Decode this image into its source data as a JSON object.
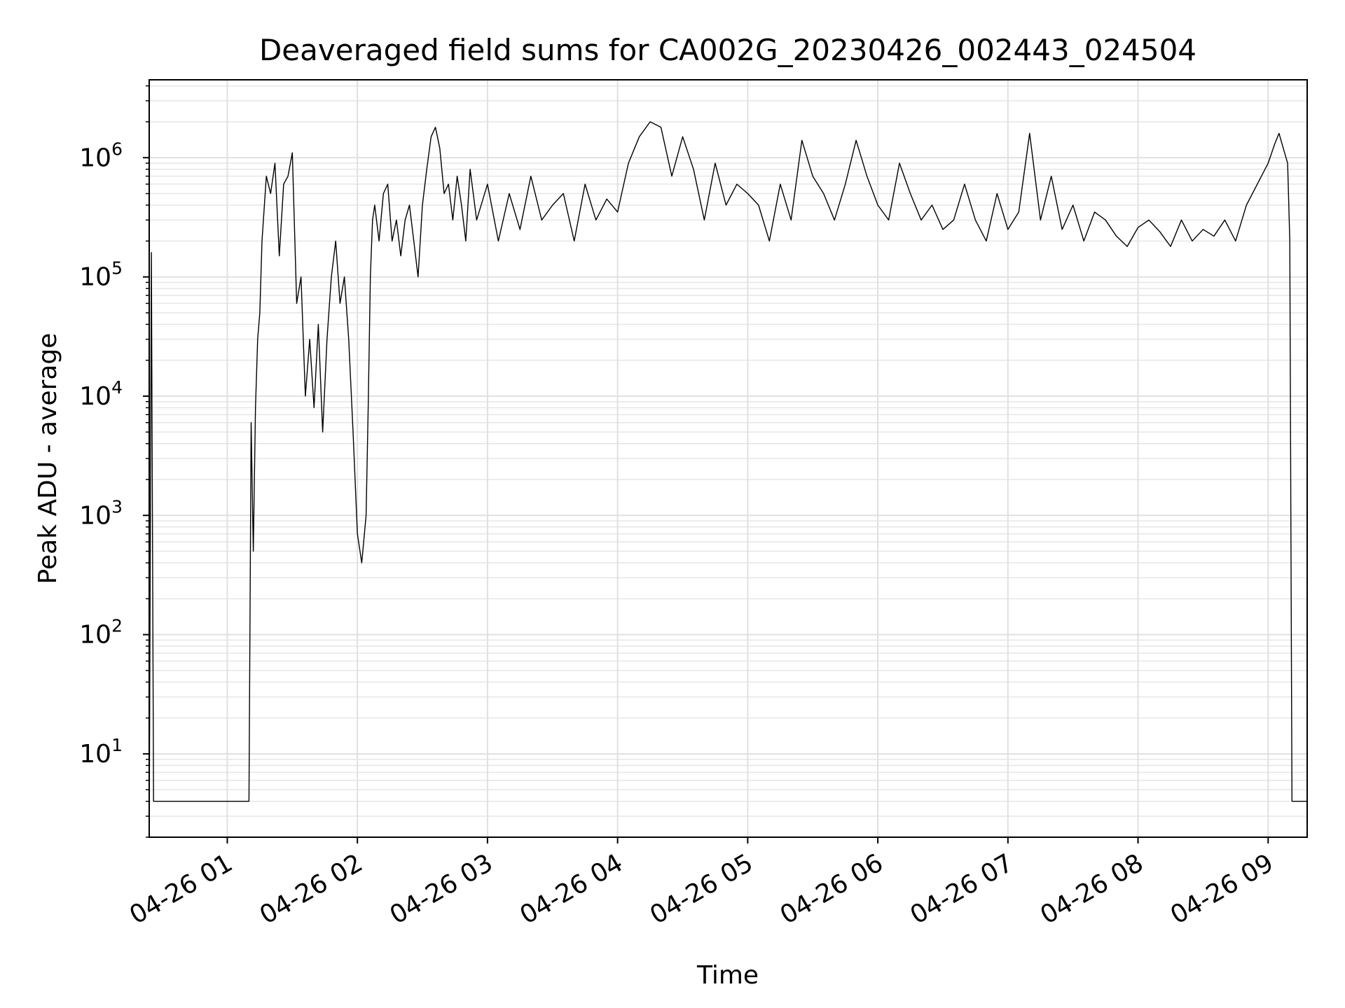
{
  "chart_data": {
    "type": "line",
    "title": "Deaveraged field sums for CA002G_20230426_002443_024504",
    "xlabel": "Time",
    "ylabel": "Peak ADU - average",
    "yscale": "log",
    "xlim": [
      "2023-04-26 00:24",
      "2023-04-26 09:18"
    ],
    "ylim": [
      2,
      4500000
    ],
    "grid": "major and minor",
    "legend": "none",
    "line_color": "#000000",
    "x_ticks": [
      {
        "value": "2023-04-26 01:00",
        "label": "04-26 01"
      },
      {
        "value": "2023-04-26 02:00",
        "label": "04-26 02"
      },
      {
        "value": "2023-04-26 03:00",
        "label": "04-26 03"
      },
      {
        "value": "2023-04-26 04:00",
        "label": "04-26 04"
      },
      {
        "value": "2023-04-26 05:00",
        "label": "04-26 05"
      },
      {
        "value": "2023-04-26 06:00",
        "label": "04-26 06"
      },
      {
        "value": "2023-04-26 07:00",
        "label": "04-26 07"
      },
      {
        "value": "2023-04-26 08:00",
        "label": "04-26 08"
      },
      {
        "value": "2023-04-26 09:00",
        "label": "04-26 09"
      }
    ],
    "y_ticks": [
      {
        "value": 10,
        "base": "10",
        "exp": "1"
      },
      {
        "value": 100,
        "base": "10",
        "exp": "2"
      },
      {
        "value": 1000,
        "base": "10",
        "exp": "3"
      },
      {
        "value": 10000,
        "base": "10",
        "exp": "4"
      },
      {
        "value": 100000,
        "base": "10",
        "exp": "5"
      },
      {
        "value": 1000000,
        "base": "10",
        "exp": "6"
      }
    ],
    "series": [
      {
        "x": [
          "2023-04-26 00:24",
          "2023-04-26 00:25",
          "2023-04-26 00:26",
          "2023-04-26 00:27",
          "2023-04-26 00:35",
          "2023-04-26 00:45",
          "2023-04-26 00:55",
          "2023-04-26 01:05",
          "2023-04-26 01:10",
          "2023-04-26 01:11",
          "2023-04-26 01:12",
          "2023-04-26 01:13",
          "2023-04-26 01:14",
          "2023-04-26 01:15",
          "2023-04-26 01:16",
          "2023-04-26 01:18",
          "2023-04-26 01:20",
          "2023-04-26 01:22",
          "2023-04-26 01:24",
          "2023-04-26 01:26",
          "2023-04-26 01:28",
          "2023-04-26 01:30",
          "2023-04-26 01:32",
          "2023-04-26 01:34",
          "2023-04-26 01:36",
          "2023-04-26 01:38",
          "2023-04-26 01:40",
          "2023-04-26 01:42",
          "2023-04-26 01:44",
          "2023-04-26 01:46",
          "2023-04-26 01:48",
          "2023-04-26 01:50",
          "2023-04-26 01:52",
          "2023-04-26 01:54",
          "2023-04-26 01:56",
          "2023-04-26 01:58",
          "2023-04-26 02:00",
          "2023-04-26 02:02",
          "2023-04-26 02:04",
          "2023-04-26 02:05",
          "2023-04-26 02:06",
          "2023-04-26 02:07",
          "2023-04-26 02:08",
          "2023-04-26 02:10",
          "2023-04-26 02:12",
          "2023-04-26 02:14",
          "2023-04-26 02:16",
          "2023-04-26 02:18",
          "2023-04-26 02:20",
          "2023-04-26 02:22",
          "2023-04-26 02:24",
          "2023-04-26 02:26",
          "2023-04-26 02:28",
          "2023-04-26 02:30",
          "2023-04-26 02:32",
          "2023-04-26 02:34",
          "2023-04-26 02:36",
          "2023-04-26 02:38",
          "2023-04-26 02:40",
          "2023-04-26 02:42",
          "2023-04-26 02:44",
          "2023-04-26 02:46",
          "2023-04-26 02:48",
          "2023-04-26 02:50",
          "2023-04-26 02:52",
          "2023-04-26 02:55",
          "2023-04-26 03:00",
          "2023-04-26 03:05",
          "2023-04-26 03:10",
          "2023-04-26 03:15",
          "2023-04-26 03:20",
          "2023-04-26 03:25",
          "2023-04-26 03:30",
          "2023-04-26 03:35",
          "2023-04-26 03:40",
          "2023-04-26 03:45",
          "2023-04-26 03:50",
          "2023-04-26 03:55",
          "2023-04-26 04:00",
          "2023-04-26 04:05",
          "2023-04-26 04:10",
          "2023-04-26 04:15",
          "2023-04-26 04:20",
          "2023-04-26 04:25",
          "2023-04-26 04:30",
          "2023-04-26 04:35",
          "2023-04-26 04:40",
          "2023-04-26 04:45",
          "2023-04-26 04:50",
          "2023-04-26 04:55",
          "2023-04-26 05:00",
          "2023-04-26 05:05",
          "2023-04-26 05:10",
          "2023-04-26 05:15",
          "2023-04-26 05:20",
          "2023-04-26 05:25",
          "2023-04-26 05:30",
          "2023-04-26 05:35",
          "2023-04-26 05:40",
          "2023-04-26 05:45",
          "2023-04-26 05:50",
          "2023-04-26 05:55",
          "2023-04-26 06:00",
          "2023-04-26 06:05",
          "2023-04-26 06:10",
          "2023-04-26 06:15",
          "2023-04-26 06:20",
          "2023-04-26 06:25",
          "2023-04-26 06:30",
          "2023-04-26 06:35",
          "2023-04-26 06:40",
          "2023-04-26 06:45",
          "2023-04-26 06:50",
          "2023-04-26 06:55",
          "2023-04-26 07:00",
          "2023-04-26 07:05",
          "2023-04-26 07:10",
          "2023-04-26 07:15",
          "2023-04-26 07:20",
          "2023-04-26 07:25",
          "2023-04-26 07:30",
          "2023-04-26 07:35",
          "2023-04-26 07:40",
          "2023-04-26 07:45",
          "2023-04-26 07:50",
          "2023-04-26 07:55",
          "2023-04-26 08:00",
          "2023-04-26 08:05",
          "2023-04-26 08:10",
          "2023-04-26 08:15",
          "2023-04-26 08:20",
          "2023-04-26 08:25",
          "2023-04-26 08:30",
          "2023-04-26 08:35",
          "2023-04-26 08:40",
          "2023-04-26 08:45",
          "2023-04-26 08:50",
          "2023-04-26 08:55",
          "2023-04-26 09:00",
          "2023-04-26 09:03",
          "2023-04-26 09:05",
          "2023-04-26 09:07",
          "2023-04-26 09:09",
          "2023-04-26 09:10",
          "2023-04-26 09:11",
          "2023-04-26 09:12",
          "2023-04-26 09:18"
        ],
        "y": [
          2,
          160000,
          4,
          4,
          4,
          4,
          4,
          4,
          4,
          6000,
          500,
          8000,
          30000,
          50000,
          200000,
          700000,
          500000,
          900000,
          150000,
          600000,
          700000,
          1100000,
          60000,
          100000,
          10000,
          30000,
          8000,
          40000,
          5000,
          30000,
          100000,
          200000,
          60000,
          100000,
          30000,
          5000,
          700,
          400,
          1000,
          8000,
          100000,
          300000,
          400000,
          200000,
          500000,
          600000,
          200000,
          300000,
          150000,
          300000,
          400000,
          200000,
          100000,
          400000,
          800000,
          1500000,
          1800000,
          1200000,
          500000,
          600000,
          300000,
          700000,
          400000,
          200000,
          800000,
          300000,
          600000,
          200000,
          500000,
          250000,
          700000,
          300000,
          400000,
          500000,
          200000,
          600000,
          300000,
          450000,
          350000,
          900000,
          1500000,
          2000000,
          1800000,
          700000,
          1500000,
          800000,
          300000,
          900000,
          400000,
          600000,
          500000,
          400000,
          200000,
          600000,
          300000,
          1400000,
          700000,
          500000,
          300000,
          600000,
          1400000,
          700000,
          400000,
          300000,
          900000,
          500000,
          300000,
          400000,
          250000,
          300000,
          600000,
          300000,
          200000,
          500000,
          250000,
          350000,
          1600000,
          300000,
          700000,
          250000,
          400000,
          200000,
          350000,
          300000,
          220000,
          180000,
          260000,
          300000,
          240000,
          180000,
          300000,
          200000,
          250000,
          220000,
          300000,
          200000,
          400000,
          600000,
          900000,
          1300000,
          1600000,
          1200000,
          900000,
          200000,
          4,
          4,
          4
        ]
      }
    ]
  }
}
